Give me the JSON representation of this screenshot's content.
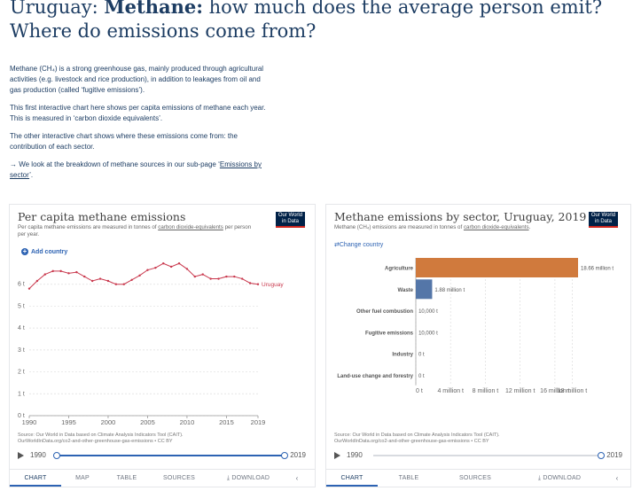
{
  "page": {
    "title_country": "Uruguay:",
    "title_bold": "Methane:",
    "title_rest": "how much does the average person emit? Where do emissions come from?"
  },
  "intro": {
    "p1": "Methane (CH₄) is a strong greenhouse gas, mainly produced through agricultural activities (e.g. livestock and rice production), in addition to leakages from oil and gas production (called ‘fugitive emissions’).",
    "p2": "This first interactive chart here shows per capita emissions of methane each year. This is measured in ‘carbon dioxide equivalents’.",
    "p3": "The other interactive chart shows where these emissions come from: the contribution of each sector.",
    "p4_prefix": "→ We look at the breakdown of methane sources in our sub-page ‘",
    "p4_link": "Emissions by sector",
    "p4_suffix": "’."
  },
  "chart1": {
    "title": "Per capita methane emissions",
    "subtitle_a": "Per capita methane emissions are measured in tonnes of ",
    "subtitle_link": "carbon dioxide-equivalents",
    "subtitle_b": " per person per year.",
    "logo": "Our World in Data",
    "add_country": "Add country",
    "source": "Source: Our World in Data based on Climate Analysis Indicators Tool (CAIT).",
    "source2": "OurWorldInData.org/co2-and-other-greenhouse-gas-emissions • CC BY",
    "timeline_start": "1990",
    "timeline_end": "2019",
    "tabs": [
      "CHART",
      "MAP",
      "TABLE",
      "SOURCES",
      "DOWNLOAD"
    ],
    "share_icon": "‹"
  },
  "chart2": {
    "title": "Methane emissions by sector, Uruguay, 2019",
    "subtitle_a": "Methane (CH₄) emissions are measured in tonnes of ",
    "subtitle_link": "carbon dioxide-equivalents",
    "subtitle_b": ".",
    "logo": "Our World in Data",
    "change_country": "Change country",
    "source": "Source: Our World in Data based on Climate Analysis Indicators Tool (CAIT).",
    "source2": "OurWorldInData.org/co2-and-other-greenhouse-gas-emissions • CC BY",
    "timeline_start": "1990",
    "timeline_end": "2019",
    "tabs": [
      "CHART",
      "TABLE",
      "SOURCES",
      "DOWNLOAD"
    ],
    "share_icon": "‹"
  },
  "chart_data": [
    {
      "type": "line",
      "title": "Per capita methane emissions",
      "ylabel": "t",
      "ylim": [
        0,
        7
      ],
      "yticks": [
        0,
        1,
        2,
        3,
        4,
        5,
        6
      ],
      "ytick_labels": [
        "0 t",
        "1 t",
        "2 t",
        "3 t",
        "4 t",
        "5 t",
        "6 t"
      ],
      "xticks": [
        1990,
        1995,
        2000,
        2005,
        2010,
        2015,
        2019
      ],
      "xlim": [
        1990,
        2019
      ],
      "series": [
        {
          "name": "Uruguay",
          "color": "#c9384d",
          "x": [
            1990,
            1991,
            1992,
            1993,
            1994,
            1995,
            1996,
            1997,
            1998,
            1999,
            2000,
            2001,
            2002,
            2003,
            2004,
            2005,
            2006,
            2007,
            2008,
            2009,
            2010,
            2011,
            2012,
            2013,
            2014,
            2015,
            2016,
            2017,
            2018,
            2019
          ],
          "values": [
            5.8,
            6.15,
            6.45,
            6.6,
            6.6,
            6.5,
            6.55,
            6.35,
            6.15,
            6.25,
            6.15,
            6.0,
            6.0,
            6.2,
            6.4,
            6.65,
            6.75,
            6.95,
            6.8,
            6.95,
            6.7,
            6.35,
            6.45,
            6.25,
            6.25,
            6.35,
            6.35,
            6.25,
            6.05,
            6.0
          ]
        }
      ]
    },
    {
      "type": "bar",
      "orientation": "horizontal",
      "title": "Methane emissions by sector, Uruguay, 2019",
      "categories": [
        "Agriculture",
        "Waste",
        "Other fuel combustion",
        "Fugitive emissions",
        "Industry",
        "Land-use change and forestry"
      ],
      "values": [
        18660000,
        1880000,
        10000,
        10000,
        0,
        0
      ],
      "value_labels": [
        "18.66 million t",
        "1.88 million t",
        "10,000 t",
        "10,000 t",
        "0 t",
        "0 t"
      ],
      "xticks": [
        0,
        4000000,
        8000000,
        12000000,
        16000000,
        18000000
      ],
      "xtick_labels": [
        "0 t",
        "4 million t",
        "8 million t",
        "12 million t",
        "16 million t",
        "18 million t"
      ],
      "xlim": [
        0,
        18660000
      ],
      "colors": [
        "#d07a3d",
        "#5476a8",
        "#8c8c8c",
        "#8c8c8c",
        "#8c8c8c",
        "#8c8c8c"
      ]
    }
  ]
}
